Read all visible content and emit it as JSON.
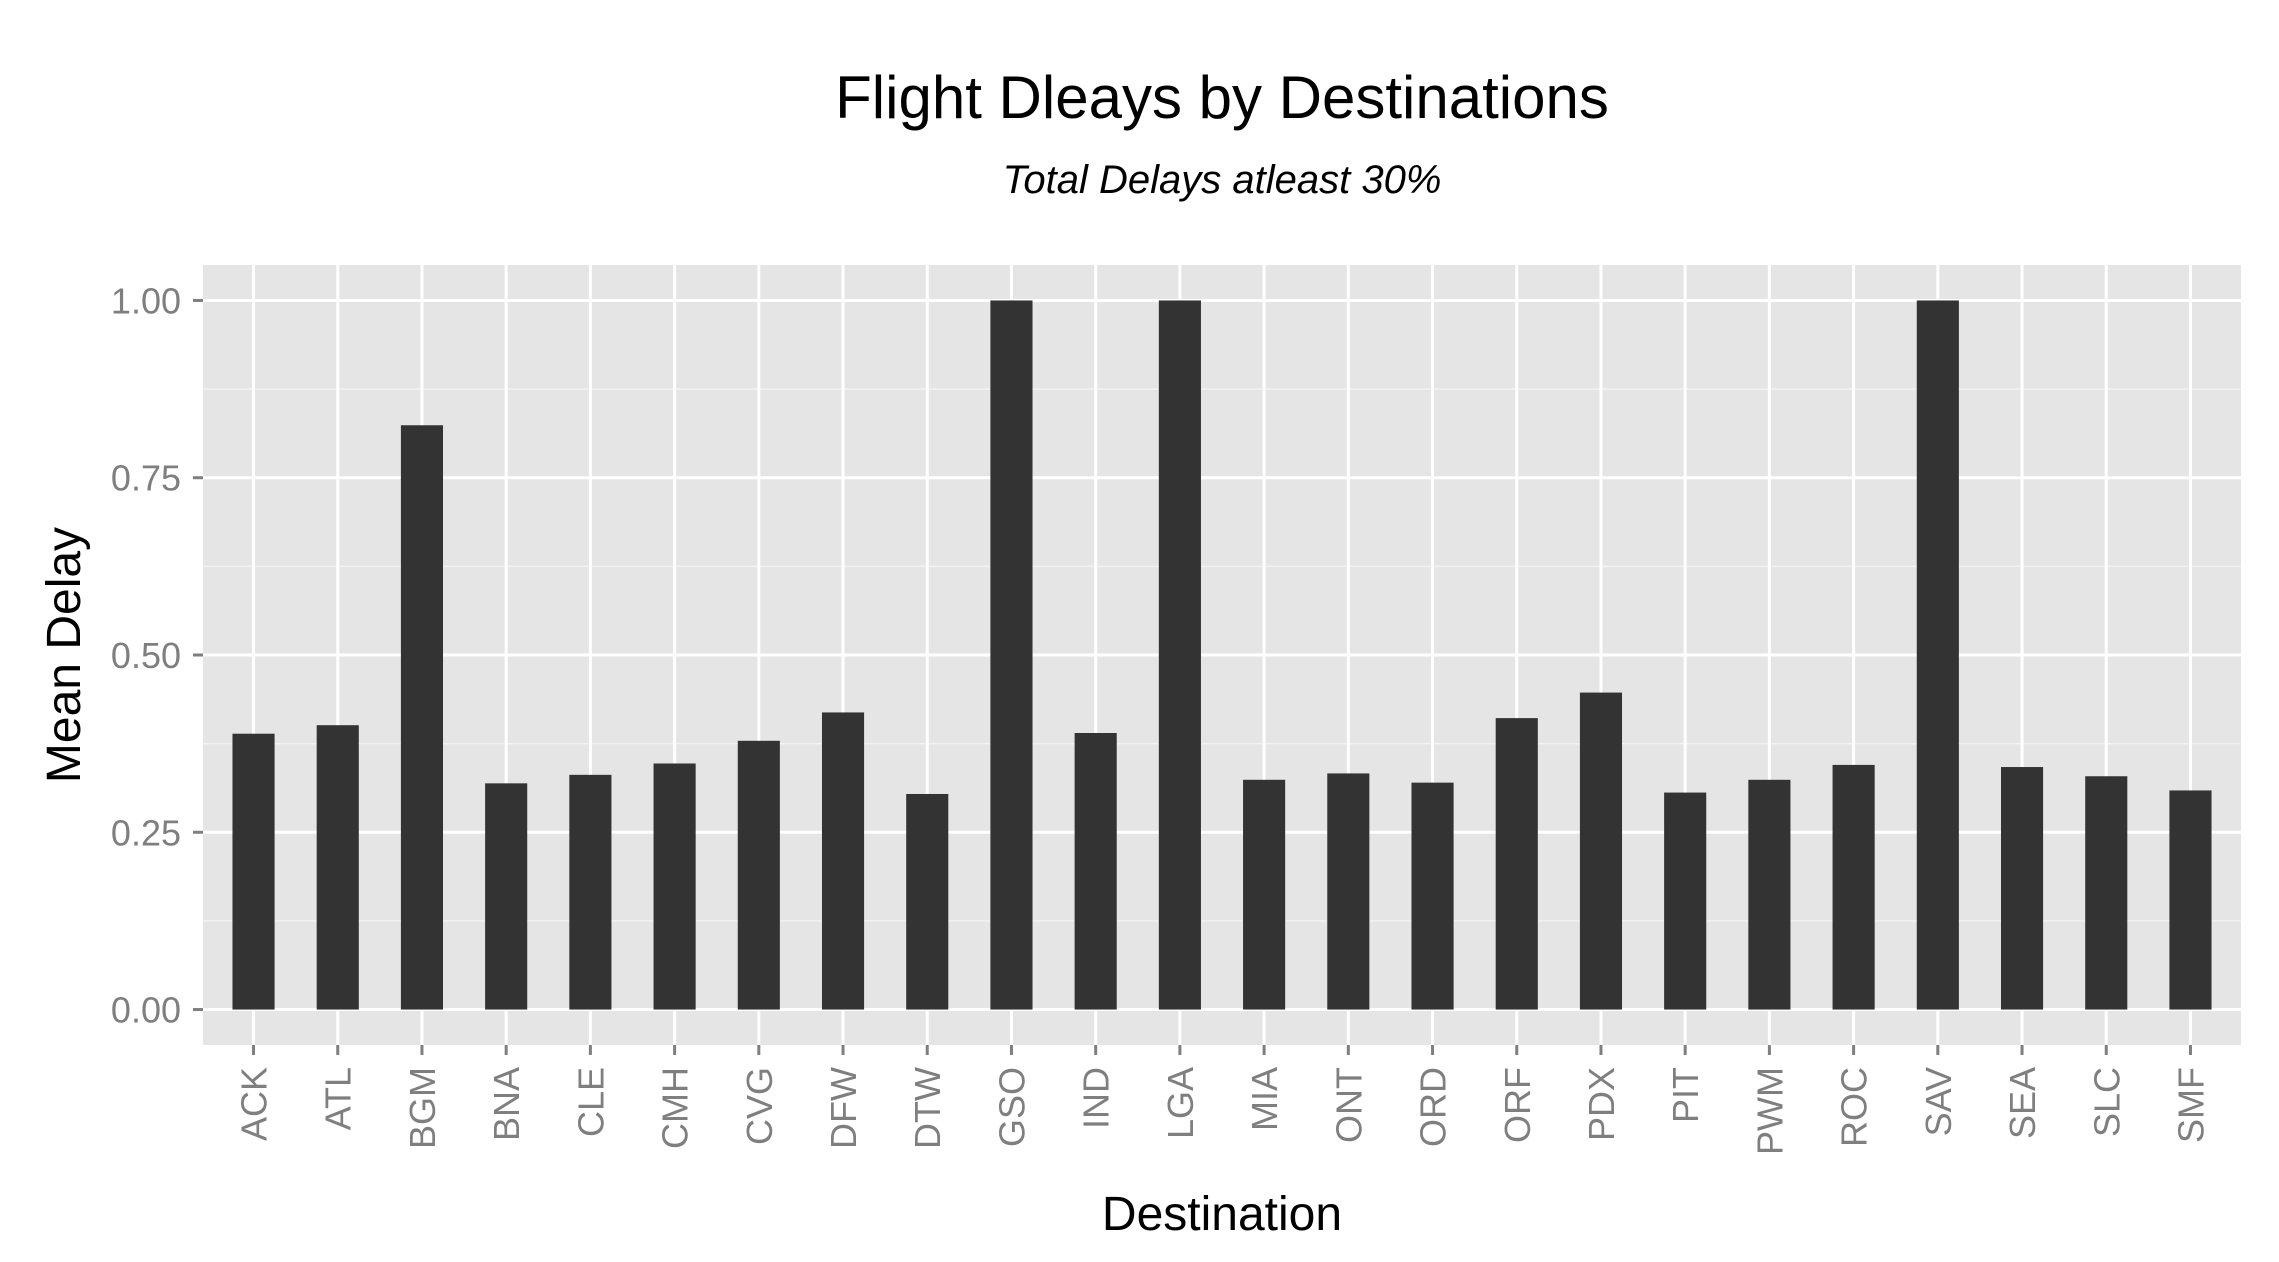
{
  "chart_data": {
    "type": "bar",
    "title": "Flight Dleays by Destinations",
    "subtitle": "Total Delays atleast 30%",
    "xlabel": "Destination",
    "ylabel": "Mean Delay",
    "ylim": [
      -0.05,
      1.05
    ],
    "yticks": [
      0,
      0.25,
      0.5,
      0.75,
      1.0
    ],
    "ytick_labels": [
      "0.00",
      "0.25",
      "0.50",
      "0.75",
      "1.00"
    ],
    "categories": [
      "ACK",
      "ATL",
      "BGM",
      "BNA",
      "CLE",
      "CMH",
      "CVG",
      "DFW",
      "DTW",
      "GSO",
      "IND",
      "LGA",
      "MIA",
      "ONT",
      "ORD",
      "ORF",
      "PDX",
      "PIT",
      "PWM",
      "ROC",
      "SAV",
      "SEA",
      "SLC",
      "SMF"
    ],
    "values": [
      0.389,
      0.401,
      0.824,
      0.319,
      0.331,
      0.347,
      0.379,
      0.419,
      0.304,
      1.0,
      0.39,
      1.0,
      0.324,
      0.333,
      0.32,
      0.411,
      0.447,
      0.306,
      0.324,
      0.345,
      1.0,
      0.342,
      0.329,
      0.309
    ],
    "grid": true,
    "legend": "none",
    "colors": {
      "bar": "#333333",
      "panel": "#e5e5e5",
      "grid_major": "#ffffff",
      "grid_minor": "#f2f2f2",
      "tick_label": "#7f7f7f",
      "tick_mark": "#7f7f7f"
    }
  }
}
